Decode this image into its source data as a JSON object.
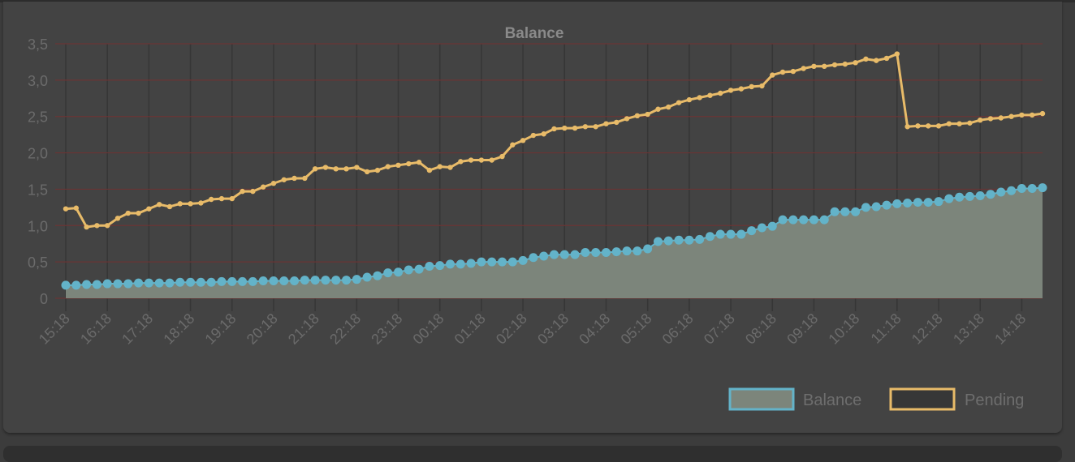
{
  "chart_data": {
    "type": "line",
    "title": "Balance",
    "xlabel": "",
    "ylabel": "",
    "ylim": [
      0,
      3.5
    ],
    "yticks": [
      "0",
      "0,5",
      "1,0",
      "1,5",
      "2,0",
      "2,5",
      "3,0",
      "3,5"
    ],
    "ytick_values": [
      0,
      0.5,
      1.0,
      1.5,
      2.0,
      2.5,
      3.0,
      3.5
    ],
    "x_interval_minutes": 15,
    "x_labels": [
      "15:18",
      "16:18",
      "17:18",
      "18:18",
      "19:18",
      "20:18",
      "21:18",
      "22:18",
      "23:18",
      "00:18",
      "01:18",
      "02:18",
      "03:18",
      "04:18",
      "05:18",
      "06:18",
      "07:18",
      "08:18",
      "09:18",
      "10:18",
      "11:18",
      "12:18",
      "13:18",
      "14:18"
    ],
    "x_label_every": 4,
    "grid": true,
    "legend_position": "bottom-right",
    "series": [
      {
        "name": "Balance",
        "type": "area",
        "border_color": "#63b3c9",
        "fill_color": "#7c857b",
        "values": [
          0.18,
          0.18,
          0.19,
          0.19,
          0.2,
          0.2,
          0.2,
          0.21,
          0.21,
          0.21,
          0.21,
          0.22,
          0.22,
          0.22,
          0.22,
          0.23,
          0.23,
          0.23,
          0.23,
          0.24,
          0.24,
          0.24,
          0.24,
          0.25,
          0.25,
          0.25,
          0.25,
          0.25,
          0.26,
          0.29,
          0.31,
          0.35,
          0.36,
          0.39,
          0.4,
          0.44,
          0.45,
          0.47,
          0.47,
          0.48,
          0.5,
          0.5,
          0.5,
          0.5,
          0.52,
          0.56,
          0.58,
          0.6,
          0.6,
          0.6,
          0.63,
          0.63,
          0.63,
          0.64,
          0.65,
          0.65,
          0.68,
          0.78,
          0.79,
          0.8,
          0.8,
          0.81,
          0.85,
          0.88,
          0.88,
          0.88,
          0.93,
          0.97,
          0.99,
          1.08,
          1.08,
          1.08,
          1.08,
          1.08,
          1.19,
          1.19,
          1.19,
          1.25,
          1.26,
          1.28,
          1.3,
          1.31,
          1.32,
          1.32,
          1.33,
          1.37,
          1.39,
          1.4,
          1.41,
          1.43,
          1.46,
          1.48,
          1.51,
          1.51,
          1.52
        ]
      },
      {
        "name": "Pending",
        "type": "line",
        "border_color": "#e8bb69",
        "values": [
          1.23,
          1.24,
          0.98,
          1.0,
          1.0,
          1.1,
          1.17,
          1.17,
          1.23,
          1.29,
          1.26,
          1.3,
          1.3,
          1.31,
          1.36,
          1.37,
          1.37,
          1.47,
          1.47,
          1.53,
          1.58,
          1.63,
          1.65,
          1.65,
          1.78,
          1.8,
          1.78,
          1.78,
          1.8,
          1.74,
          1.76,
          1.81,
          1.83,
          1.85,
          1.87,
          1.76,
          1.81,
          1.8,
          1.88,
          1.9,
          1.9,
          1.9,
          1.95,
          2.11,
          2.17,
          2.24,
          2.26,
          2.33,
          2.34,
          2.34,
          2.36,
          2.36,
          2.4,
          2.42,
          2.47,
          2.51,
          2.53,
          2.6,
          2.63,
          2.69,
          2.73,
          2.76,
          2.79,
          2.82,
          2.86,
          2.88,
          2.91,
          2.92,
          3.07,
          3.11,
          3.12,
          3.16,
          3.19,
          3.19,
          3.21,
          3.22,
          3.24,
          3.29,
          3.27,
          3.3,
          3.36,
          2.36,
          2.37,
          2.37,
          2.37,
          2.4,
          2.4,
          2.41,
          2.45,
          2.47,
          2.48,
          2.5,
          2.52,
          2.52,
          2.54
        ]
      }
    ]
  }
}
